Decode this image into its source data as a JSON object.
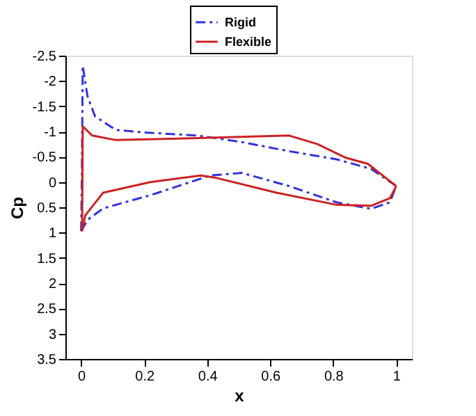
{
  "chart_data": {
    "type": "line",
    "xlabel": "x",
    "ylabel": "Cp",
    "xlim": [
      -0.05,
      1.05
    ],
    "ylim": [
      3.5,
      -2.5
    ],
    "xticks": [
      0,
      0.2,
      0.4,
      0.6,
      0.8,
      1
    ],
    "yticks": [
      -2.5,
      -2,
      -1.5,
      -1,
      -0.5,
      0,
      0.5,
      1,
      1.5,
      2,
      2.5,
      3,
      3.5
    ],
    "grid": false,
    "legend": "top",
    "marker": "none",
    "series": [
      {
        "name": "Rigid",
        "color": "#3333dd",
        "line_style": "dashed",
        "x": [
          0,
          0.002,
          0.005,
          0.02,
          0.044,
          0.11,
          0.2,
          0.37,
          0.51,
          0.66,
          0.81,
          0.92,
          1.0
        ],
        "values": [
          0.97,
          0,
          -2.3,
          -1.7,
          -1.3,
          -1.03,
          -0.98,
          -0.92,
          -0.79,
          -0.61,
          -0.45,
          -0.26,
          0.08
        ]
      },
      {
        "color": "#3333dd",
        "line_style": "dashed",
        "x": [
          0,
          0.02,
          0.07,
          0.22,
          0.41,
          0.51,
          0.66,
          0.81,
          0.92,
          0.98,
          1.0
        ],
        "values": [
          0.97,
          0.75,
          0.52,
          0.26,
          -0.13,
          -0.18,
          0.08,
          0.4,
          0.53,
          0.4,
          0.08
        ]
      },
      {
        "name": "Flexible",
        "color": "#cc2222",
        "line_style": "solid",
        "x": [
          0.003,
          0.005,
          0.035,
          0.11,
          0.37,
          0.66,
          0.75,
          0.84,
          0.91,
          1.0
        ],
        "values": [
          0.97,
          -1.1,
          -0.92,
          -0.83,
          -0.87,
          -0.92,
          -0.75,
          -0.48,
          -0.36,
          0.08
        ]
      },
      {
        "color": "#cc2222",
        "line_style": "solid",
        "x": [
          0.003,
          0.013,
          0.07,
          0.22,
          0.38,
          0.43,
          0.62,
          0.81,
          0.92,
          0.98,
          1.0
        ],
        "values": [
          0.97,
          0.66,
          0.21,
          0.0,
          -0.13,
          -0.08,
          0.21,
          0.45,
          0.47,
          0.32,
          0.08
        ]
      }
    ]
  }
}
